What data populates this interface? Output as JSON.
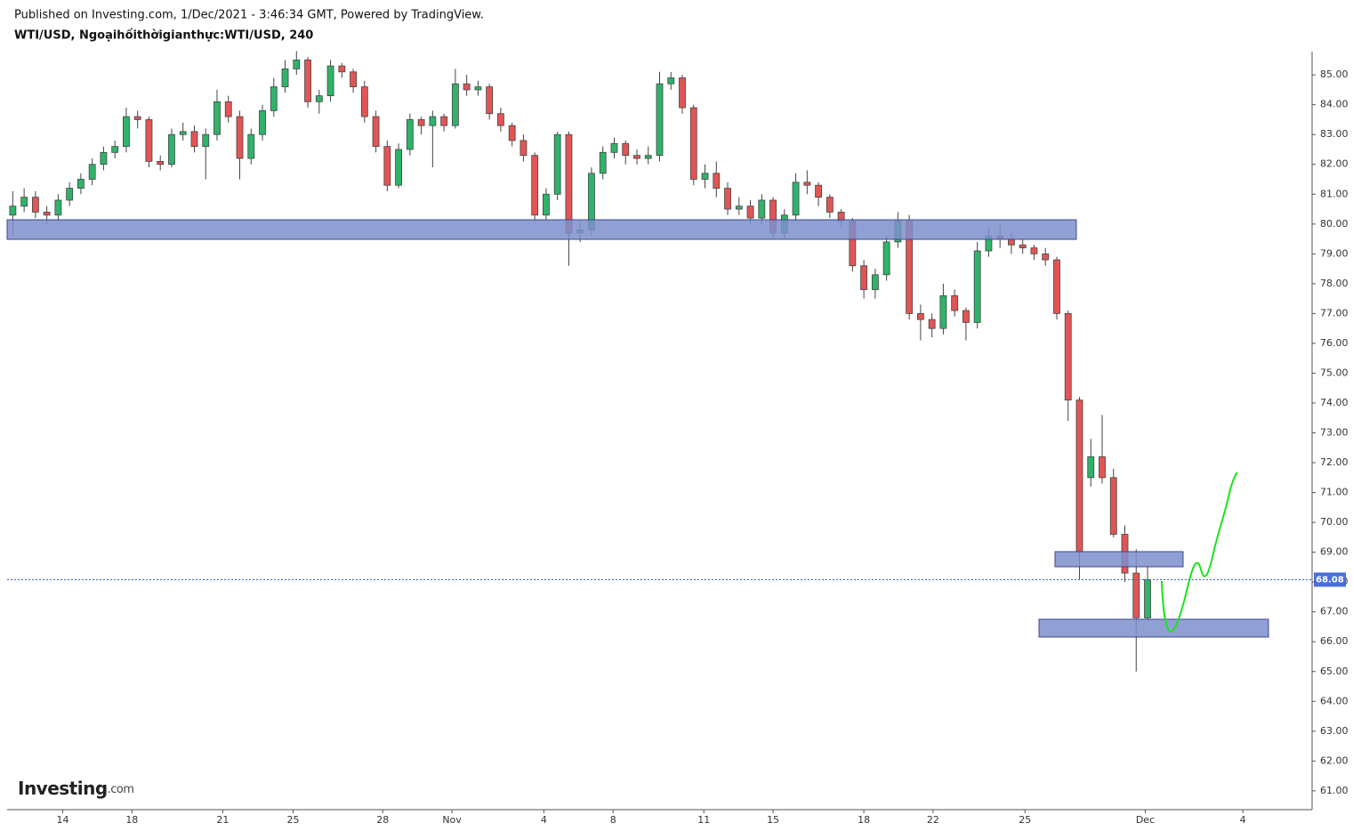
{
  "chart_data": {
    "type": "candlestick",
    "published": "Published on Investing.com, 1/Dec/2021 - 3:46:34 GMT, Powered by TradingView.",
    "title": "WTI/USD, Ngoạihốithờigianthực:WTI/USD, 240",
    "logo": "Investing",
    "logo_suffix": ".com",
    "up_color": "#2fb36b",
    "down_color": "#e25555",
    "xlim": [
      -0.5,
      114.5
    ],
    "ylim": [
      60.37,
      85.78
    ],
    "xticks": [
      {
        "value": 4.4,
        "label": "14"
      },
      {
        "value": 10.5,
        "label": "18"
      },
      {
        "value": 18.5,
        "label": "21"
      },
      {
        "value": 24.7,
        "label": "25"
      },
      {
        "value": 32.6,
        "label": "28"
      },
      {
        "value": 38.7,
        "label": "Nov"
      },
      {
        "value": 46.8,
        "label": "4"
      },
      {
        "value": 52.9,
        "label": "8"
      },
      {
        "value": 60.9,
        "label": "11"
      },
      {
        "value": 67.0,
        "label": "15"
      },
      {
        "value": 75.0,
        "label": "18"
      },
      {
        "value": 81.1,
        "label": "22"
      },
      {
        "value": 89.2,
        "label": "25"
      },
      {
        "value": 99.8,
        "label": "Dec"
      },
      {
        "value": 108.4,
        "label": "4"
      }
    ],
    "yticks": [
      {
        "value": 61,
        "label": "61.00"
      },
      {
        "value": 62,
        "label": "62.00"
      },
      {
        "value": 63,
        "label": "63.00"
      },
      {
        "value": 64,
        "label": "64.00"
      },
      {
        "value": 65,
        "label": "65.00"
      },
      {
        "value": 66,
        "label": "66.00"
      },
      {
        "value": 67,
        "label": "67.00"
      },
      {
        "value": 68,
        "label": "68.00"
      },
      {
        "value": 69,
        "label": "69.00"
      },
      {
        "value": 70,
        "label": "70.00"
      },
      {
        "value": 71,
        "label": "71.00"
      },
      {
        "value": 72,
        "label": "72.00"
      },
      {
        "value": 73,
        "label": "73.00"
      },
      {
        "value": 74,
        "label": "74.00"
      },
      {
        "value": 75,
        "label": "75.00"
      },
      {
        "value": 76,
        "label": "76.00"
      },
      {
        "value": 77,
        "label": "77.00"
      },
      {
        "value": 78,
        "label": "78.00"
      },
      {
        "value": 79,
        "label": "79.00"
      },
      {
        "value": 80,
        "label": "80.00"
      },
      {
        "value": 81,
        "label": "81.00"
      },
      {
        "value": 82,
        "label": "82.00"
      },
      {
        "value": 83,
        "label": "83.00"
      },
      {
        "value": 84,
        "label": "84.00"
      },
      {
        "value": 85,
        "label": "85.00"
      }
    ],
    "last_price": 68.08,
    "candles": [
      [
        80.3,
        81.1,
        79.6,
        80.6
      ],
      [
        80.6,
        81.2,
        80.4,
        80.9
      ],
      [
        80.9,
        81.1,
        80.2,
        80.4
      ],
      [
        80.4,
        80.6,
        80.0,
        80.3
      ],
      [
        80.3,
        81.0,
        80.1,
        80.8
      ],
      [
        80.8,
        81.4,
        80.6,
        81.2
      ],
      [
        81.2,
        81.7,
        81.0,
        81.5
      ],
      [
        81.5,
        82.2,
        81.3,
        82.0
      ],
      [
        82.0,
        82.6,
        81.8,
        82.4
      ],
      [
        82.4,
        82.8,
        82.2,
        82.6
      ],
      [
        82.6,
        83.9,
        82.4,
        83.6
      ],
      [
        83.6,
        83.8,
        83.2,
        83.5
      ],
      [
        83.5,
        83.6,
        81.9,
        82.1
      ],
      [
        82.1,
        82.3,
        81.8,
        82.0
      ],
      [
        82.0,
        83.2,
        81.9,
        83.0
      ],
      [
        83.0,
        83.4,
        82.8,
        83.1
      ],
      [
        83.1,
        83.3,
        82.4,
        82.6
      ],
      [
        82.6,
        83.2,
        81.5,
        83.0
      ],
      [
        83.0,
        84.5,
        82.8,
        84.1
      ],
      [
        84.1,
        84.3,
        83.4,
        83.6
      ],
      [
        83.6,
        83.8,
        81.5,
        82.2
      ],
      [
        82.2,
        83.2,
        82.0,
        83.0
      ],
      [
        83.0,
        84.0,
        82.8,
        83.8
      ],
      [
        83.8,
        84.9,
        83.6,
        84.6
      ],
      [
        84.6,
        85.5,
        84.4,
        85.2
      ],
      [
        85.2,
        85.8,
        85.0,
        85.5
      ],
      [
        85.5,
        85.6,
        83.9,
        84.1
      ],
      [
        84.1,
        84.5,
        83.7,
        84.3
      ],
      [
        84.3,
        85.5,
        84.1,
        85.3
      ],
      [
        85.3,
        85.4,
        84.9,
        85.1
      ],
      [
        85.1,
        85.2,
        84.4,
        84.6
      ],
      [
        84.6,
        84.8,
        83.4,
        83.6
      ],
      [
        83.6,
        83.8,
        82.4,
        82.6
      ],
      [
        82.6,
        82.8,
        81.1,
        81.3
      ],
      [
        81.3,
        82.7,
        81.2,
        82.5
      ],
      [
        82.5,
        83.7,
        82.3,
        83.5
      ],
      [
        83.5,
        83.6,
        83.0,
        83.3
      ],
      [
        83.3,
        83.8,
        81.9,
        83.6
      ],
      [
        83.6,
        83.7,
        83.1,
        83.3
      ],
      [
        83.3,
        85.2,
        83.2,
        84.7
      ],
      [
        84.7,
        85.0,
        84.3,
        84.5
      ],
      [
        84.5,
        84.8,
        84.3,
        84.6
      ],
      [
        84.6,
        84.7,
        83.5,
        83.7
      ],
      [
        83.7,
        83.9,
        83.1,
        83.3
      ],
      [
        83.3,
        83.4,
        82.6,
        82.8
      ],
      [
        82.8,
        83.0,
        82.1,
        82.3
      ],
      [
        82.3,
        82.4,
        80.1,
        80.3
      ],
      [
        80.3,
        81.2,
        80.1,
        81.0
      ],
      [
        81.0,
        83.1,
        80.8,
        83.0
      ],
      [
        83.0,
        83.1,
        78.6,
        79.7
      ],
      [
        79.7,
        80.1,
        79.4,
        79.8
      ],
      [
        79.8,
        81.9,
        79.6,
        81.7
      ],
      [
        81.7,
        82.6,
        81.5,
        82.4
      ],
      [
        82.4,
        82.9,
        82.2,
        82.7
      ],
      [
        82.7,
        82.8,
        82.0,
        82.3
      ],
      [
        82.3,
        82.5,
        82.0,
        82.2
      ],
      [
        82.2,
        82.6,
        82.0,
        82.3
      ],
      [
        82.3,
        85.1,
        82.1,
        84.7
      ],
      [
        84.7,
        85.1,
        84.5,
        84.9
      ],
      [
        84.9,
        85.0,
        83.7,
        83.9
      ],
      [
        83.9,
        84.0,
        81.3,
        81.5
      ],
      [
        81.5,
        82.0,
        81.2,
        81.7
      ],
      [
        81.7,
        82.1,
        80.9,
        81.2
      ],
      [
        81.2,
        81.4,
        80.3,
        80.5
      ],
      [
        80.5,
        80.9,
        80.3,
        80.6
      ],
      [
        80.6,
        80.8,
        80.0,
        80.2
      ],
      [
        80.2,
        81.0,
        80.0,
        80.8
      ],
      [
        80.8,
        80.9,
        79.5,
        79.7
      ],
      [
        79.7,
        80.5,
        79.5,
        80.3
      ],
      [
        80.3,
        81.7,
        80.1,
        81.4
      ],
      [
        81.4,
        81.8,
        81.0,
        81.3
      ],
      [
        81.3,
        81.4,
        80.6,
        80.9
      ],
      [
        80.9,
        81.0,
        80.2,
        80.4
      ],
      [
        80.4,
        80.5,
        79.9,
        80.1
      ],
      [
        80.1,
        80.2,
        78.4,
        78.6
      ],
      [
        78.6,
        78.8,
        77.5,
        77.8
      ],
      [
        77.8,
        78.5,
        77.5,
        78.3
      ],
      [
        78.3,
        79.6,
        78.1,
        79.4
      ],
      [
        79.4,
        80.4,
        79.2,
        80.1
      ],
      [
        80.1,
        80.3,
        76.8,
        77.0
      ],
      [
        77.0,
        77.3,
        76.1,
        76.8
      ],
      [
        76.8,
        77.0,
        76.2,
        76.5
      ],
      [
        76.5,
        78.0,
        76.3,
        77.6
      ],
      [
        77.6,
        77.8,
        76.9,
        77.1
      ],
      [
        77.1,
        77.2,
        76.1,
        76.7
      ],
      [
        76.7,
        79.4,
        76.5,
        79.1
      ],
      [
        79.1,
        79.9,
        78.9,
        79.6
      ],
      [
        79.6,
        80.0,
        79.2,
        79.5
      ],
      [
        79.5,
        79.7,
        79.0,
        79.3
      ],
      [
        79.3,
        79.5,
        79.0,
        79.2
      ],
      [
        79.2,
        79.3,
        78.8,
        79.0
      ],
      [
        79.0,
        79.2,
        78.6,
        78.8
      ],
      [
        78.8,
        78.9,
        76.8,
        77.0
      ],
      [
        77.0,
        77.1,
        73.4,
        74.1
      ],
      [
        74.1,
        74.2,
        68.1,
        69.0
      ],
      [
        71.5,
        72.8,
        71.2,
        72.2
      ],
      [
        72.2,
        73.6,
        71.3,
        71.5
      ],
      [
        71.5,
        71.8,
        69.5,
        69.6
      ],
      [
        69.6,
        69.9,
        68.0,
        68.3
      ],
      [
        68.3,
        69.1,
        65.0,
        66.8
      ],
      [
        66.8,
        68.5,
        66.7,
        68.08
      ]
    ]
  }
}
